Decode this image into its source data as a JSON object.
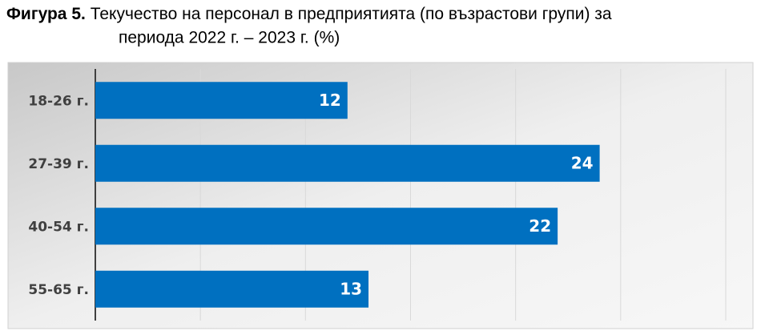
{
  "chart_data": {
    "type": "barh",
    "title_prefix": "Фигура 5.",
    "title": [
      "Текучество на персонал в предприятията  (по възрастови групи) за",
      "периода 2022 г. – 2023 г. (%)"
    ],
    "categories": [
      "18-26 г.",
      "27-39 г.",
      "40-54 г.",
      "55-65 г."
    ],
    "values": [
      12,
      24,
      22,
      13
    ],
    "color": "#0070c0",
    "xlim": [
      0,
      30
    ],
    "xticks": [
      0,
      5,
      10,
      15,
      20,
      25,
      30
    ],
    "grid": true
  }
}
